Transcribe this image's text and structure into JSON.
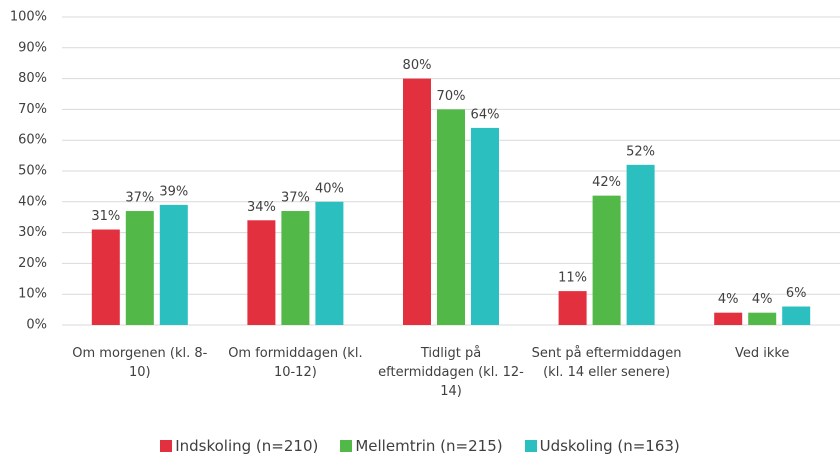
{
  "chart_data": {
    "type": "bar",
    "categories": [
      "Om morgenen (kl. 8-10)",
      "Om formiddagen (kl. 10-12)",
      "Tidligt på eftermiddagen (kl. 12-14)",
      "Sent på eftermiddagen (kl. 14 eller senere)",
      "Ved ikke"
    ],
    "series": [
      {
        "name": "Indskoling (n=210)",
        "color": "#e3303f",
        "values": [
          31,
          34,
          80,
          11,
          4
        ],
        "value_labels": [
          "31%",
          "34%",
          "80%",
          "11%",
          "4%"
        ]
      },
      {
        "name": "Mellemtrin (n=215)",
        "color": "#52b848",
        "values": [
          37,
          37,
          70,
          42,
          4
        ],
        "value_labels": [
          "37%",
          "37%",
          "70%",
          "42%",
          "4%"
        ]
      },
      {
        "name": "Udskoling (n=163)",
        "color": "#2bbfbf",
        "values": [
          39,
          40,
          64,
          52,
          6
        ],
        "value_labels": [
          "39%",
          "40%",
          "64%",
          "52%",
          "6%"
        ]
      }
    ],
    "ylim": [
      0,
      100
    ],
    "yticks": [
      {
        "value": 0,
        "label": "0%"
      },
      {
        "value": 10,
        "label": "10%"
      },
      {
        "value": 20,
        "label": "20%"
      },
      {
        "value": 30,
        "label": "30%"
      },
      {
        "value": 40,
        "label": "40%"
      },
      {
        "value": 50,
        "label": "50%"
      },
      {
        "value": 60,
        "label": "60%"
      },
      {
        "value": 70,
        "label": "70%"
      },
      {
        "value": 80,
        "label": "80%"
      },
      {
        "value": 90,
        "label": "90%"
      },
      {
        "value": 100,
        "label": "100%"
      }
    ],
    "grid": true,
    "legend": "bottom"
  }
}
